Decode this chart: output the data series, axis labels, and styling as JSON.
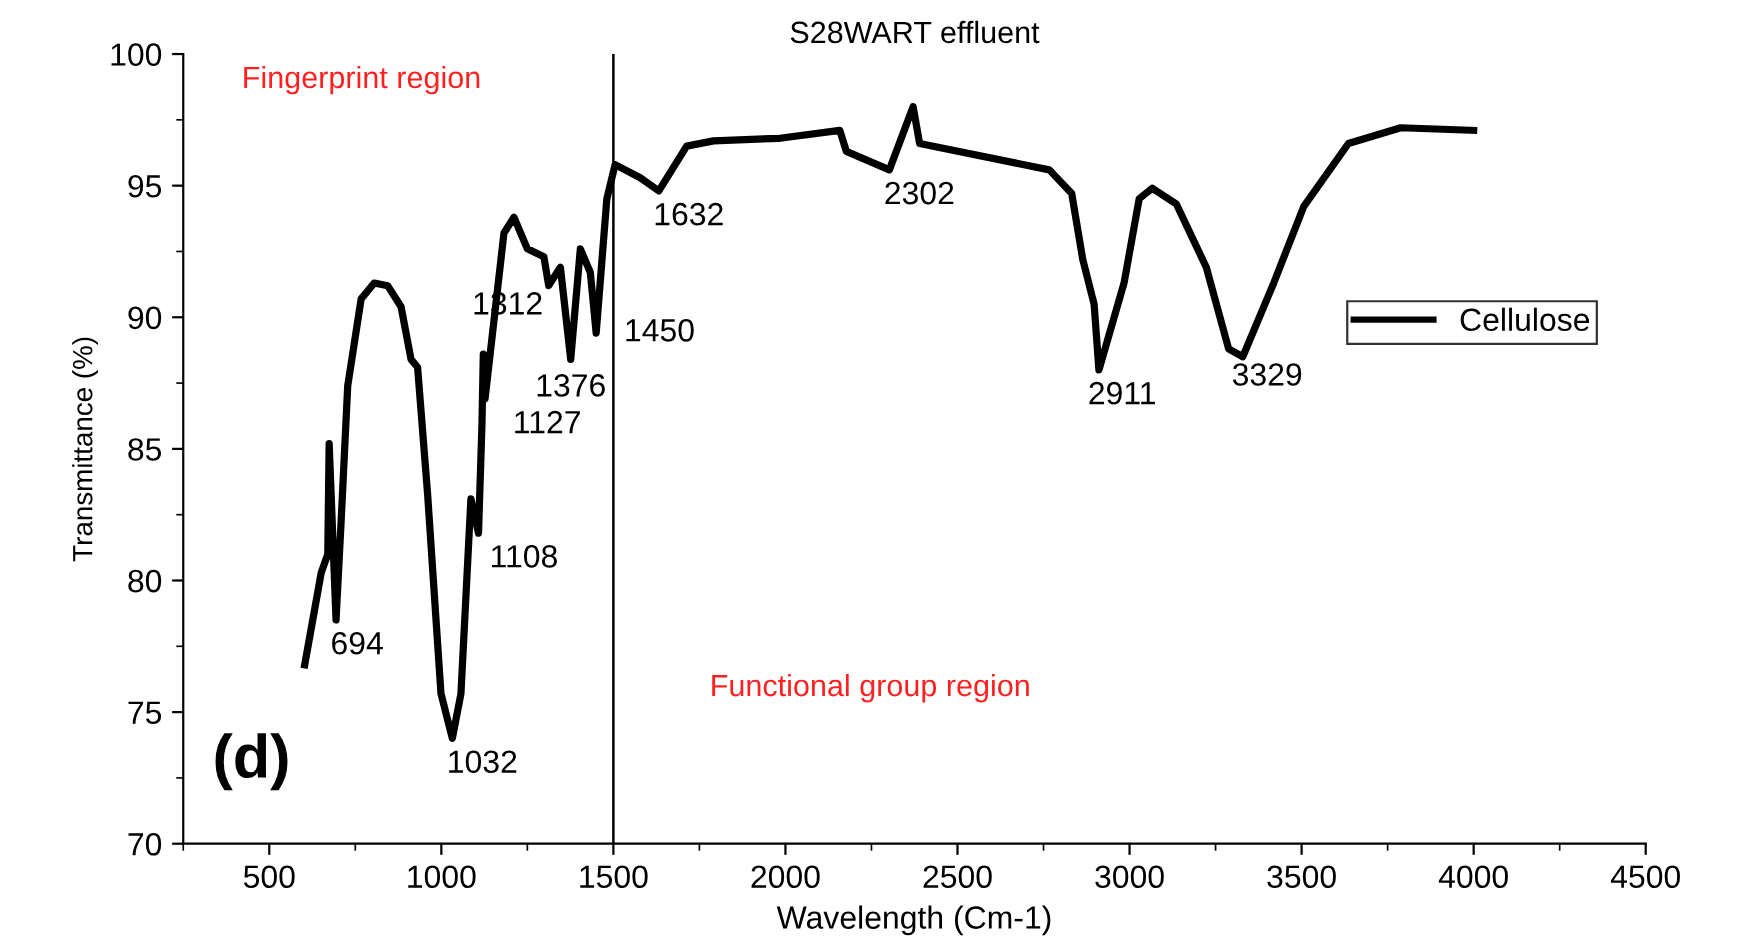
{
  "chart_data": {
    "type": "line",
    "title": "S28WART effluent",
    "xlabel": "Wavelength (Cm-1)",
    "ylabel": "Transmittance (%)",
    "xlim": [
      250,
      4500
    ],
    "xticks": [
      500,
      1000,
      1500,
      2000,
      2500,
      3000,
      3500,
      4000,
      4500
    ],
    "ylim": [
      70,
      100
    ],
    "yticks": [
      70,
      75,
      80,
      85,
      90,
      95,
      100
    ],
    "grid": false,
    "legend": "right",
    "line_style": "solid",
    "marker": "none",
    "ref_lines": [
      {
        "axis": "x",
        "value": 1500,
        "color": "#000000"
      }
    ],
    "series": [
      {
        "name": "Cellulose",
        "color": "#000000",
        "x": [
          603,
          651,
          670,
          674,
          694,
          709,
          728,
          767,
          805,
          844,
          883,
          912,
          931,
          960,
          999,
          1032,
          1057,
          1086,
          1108,
          1118,
          1122,
          1127,
          1182,
          1211,
          1250,
          1298,
          1312,
          1346,
          1376,
          1404,
          1433,
          1450,
          1481,
          1505,
          1578,
          1632,
          1713,
          1791,
          1984,
          2158,
          2177,
          2302,
          2371,
          2390,
          2767,
          2832,
          2864,
          2897,
          2911,
          2984,
          3028,
          3066,
          3136,
          3223,
          3288,
          3329,
          3419,
          3506,
          3636,
          3788,
          4000
        ],
        "values": [
          76.8,
          80.3,
          81.0,
          85.2,
          78.5,
          82.3,
          87.4,
          90.7,
          91.3,
          91.2,
          90.4,
          88.4,
          88.1,
          83.3,
          75.7,
          74.0,
          75.7,
          83.1,
          81.8,
          85.9,
          88.6,
          86.9,
          93.2,
          93.8,
          92.6,
          92.3,
          91.2,
          91.9,
          88.4,
          92.6,
          91.7,
          89.4,
          94.5,
          95.8,
          95.3,
          94.8,
          96.5,
          96.7,
          96.8,
          97.1,
          96.3,
          95.6,
          98.0,
          96.6,
          95.6,
          94.7,
          92.2,
          90.5,
          88.0,
          91.3,
          94.5,
          94.9,
          94.3,
          91.9,
          88.8,
          88.5,
          91.3,
          94.2,
          96.6,
          97.2,
          97.1
        ]
      }
    ],
    "annotations": [
      "Fingerprint region",
      "Functional group region",
      "(d)",
      {
        "text": "694",
        "x": 694,
        "y": 78.5
      },
      {
        "text": "1032",
        "x": 1032,
        "y": 74.0
      },
      {
        "text": "1108",
        "x": 1108,
        "y": 81.8
      },
      {
        "text": "1127",
        "x": 1127,
        "y": 86.9
      },
      {
        "text": "1312",
        "x": 1312,
        "y": 91.2
      },
      {
        "text": "1376",
        "x": 1376,
        "y": 88.4
      },
      {
        "text": "1450",
        "x": 1450,
        "y": 89.4
      },
      {
        "text": "1632",
        "x": 1632,
        "y": 94.8
      },
      {
        "text": "2302",
        "x": 2302,
        "y": 95.6
      },
      {
        "text": "2911",
        "x": 2911,
        "y": 88.0
      },
      {
        "text": "3329",
        "x": 3329,
        "y": 88.5
      }
    ]
  }
}
